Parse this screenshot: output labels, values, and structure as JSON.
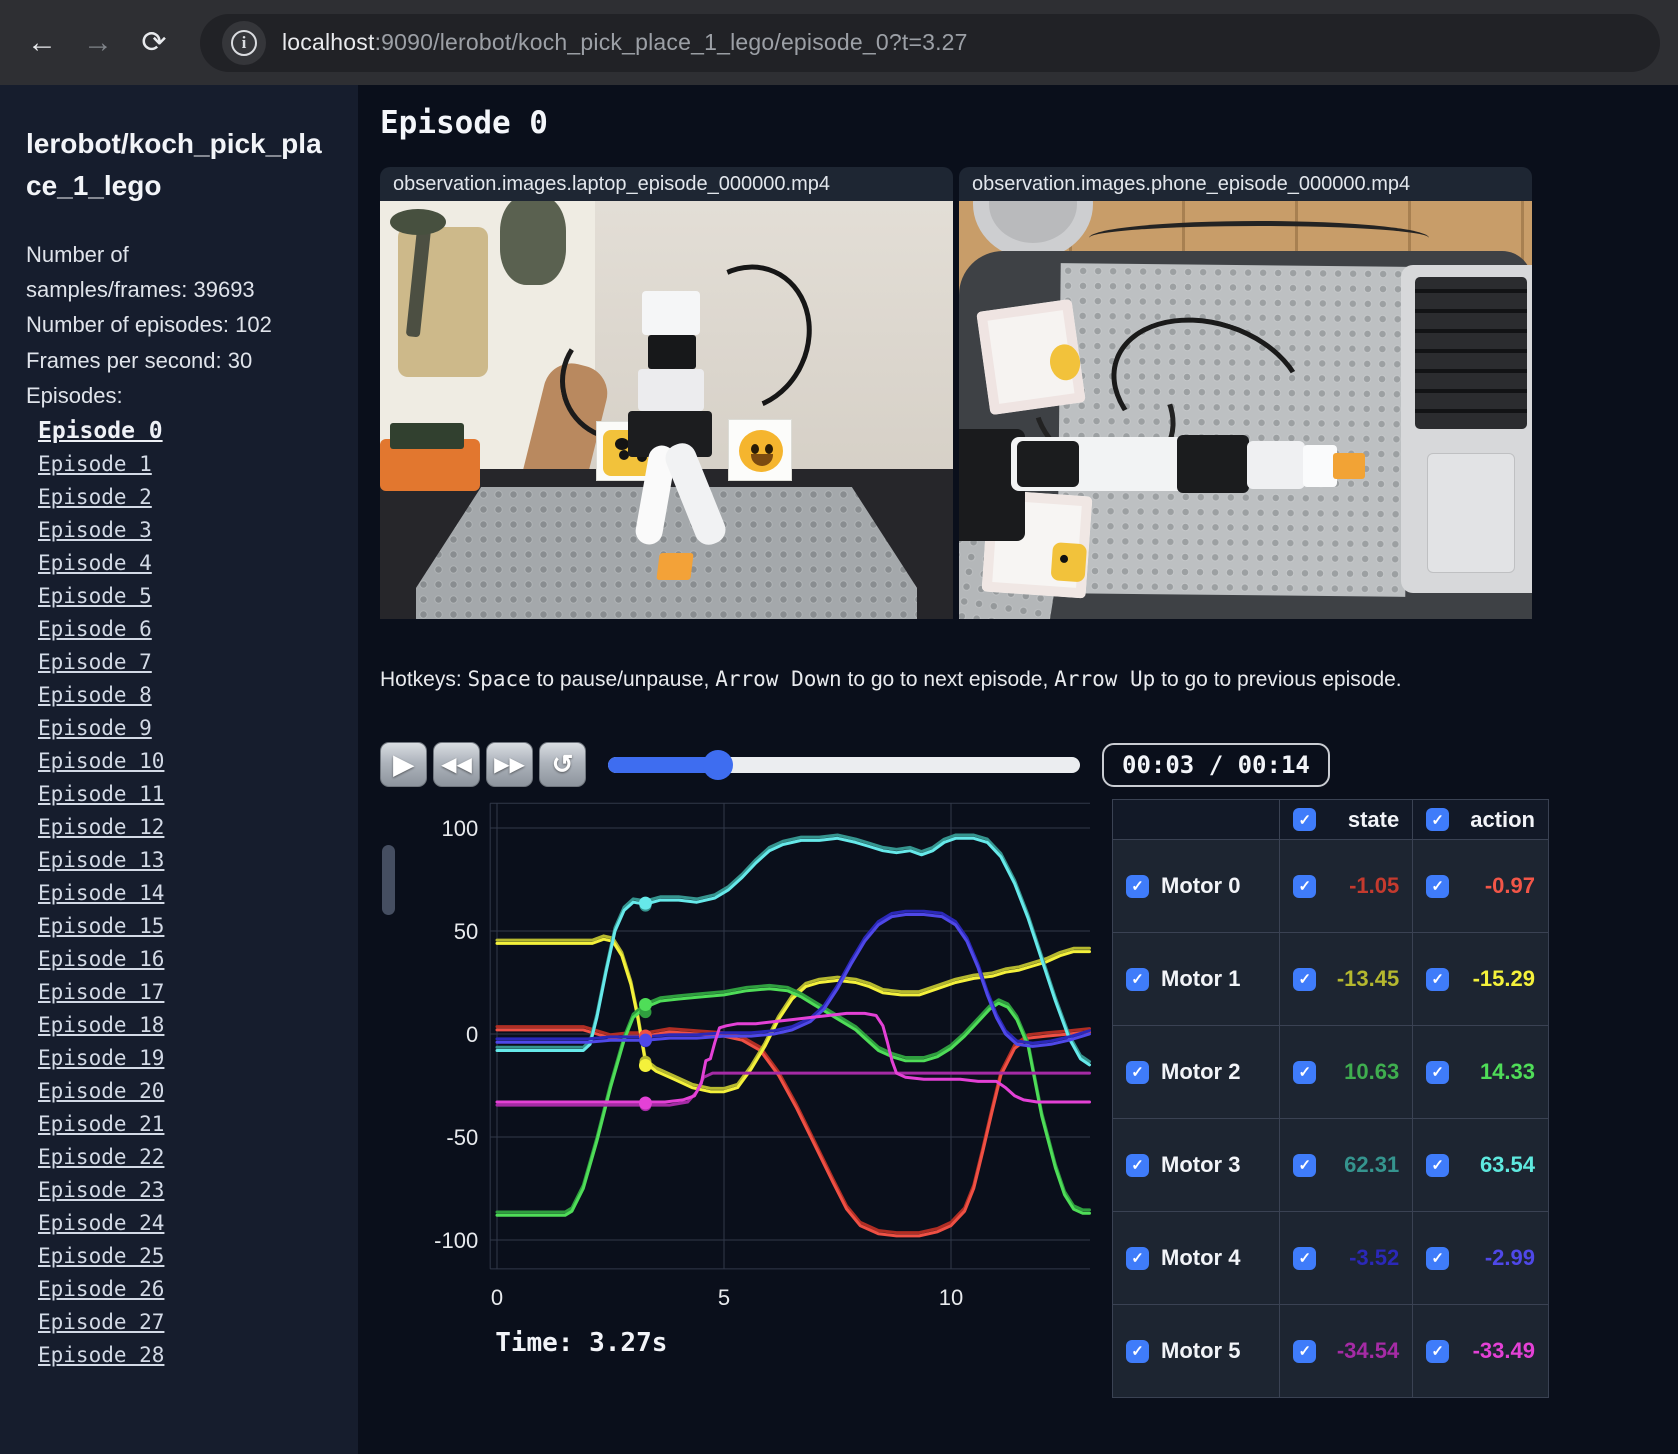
{
  "browser": {
    "url_host": "localhost",
    "url_rest": ":9090/lerobot/koch_pick_place_1_lego/episode_0?t=3.27"
  },
  "icons": {
    "back": "←",
    "forward": "→",
    "reload": "⟳",
    "info": "i",
    "play": "▶",
    "rewind": "◀◀",
    "fast_forward": "▶▶",
    "loop": "↺",
    "check": "✓"
  },
  "sidebar": {
    "title": "lerobot/koch_pick_place_1_lego",
    "stat_lines": [
      "Number of",
      "samples/frames: 39693",
      "Number of episodes: 102",
      "Frames per second: 30",
      "Episodes:"
    ],
    "current_episode": "Episode 0",
    "episodes": [
      "Episode 0",
      "Episode 1",
      "Episode 2",
      "Episode 3",
      "Episode 4",
      "Episode 5",
      "Episode 6",
      "Episode 7",
      "Episode 8",
      "Episode 9",
      "Episode 10",
      "Episode 11",
      "Episode 12",
      "Episode 13",
      "Episode 14",
      "Episode 15",
      "Episode 16",
      "Episode 17",
      "Episode 18",
      "Episode 19",
      "Episode 20",
      "Episode 21",
      "Episode 22",
      "Episode 23",
      "Episode 24",
      "Episode 25",
      "Episode 26",
      "Episode 27",
      "Episode 28"
    ]
  },
  "main": {
    "title": "Episode 0",
    "videos": [
      {
        "label": "observation.images.laptop_episode_000000.mp4"
      },
      {
        "label": "observation.images.phone_episode_000000.mp4"
      }
    ],
    "hotkeys": {
      "intro": "Hotkeys: ",
      "key_space": "Space",
      "t1": " to pause/unpause, ",
      "key_down": "Arrow Down",
      "t2": " to go to next episode, ",
      "key_up": "Arrow Up",
      "t3": " to go to previous episode."
    },
    "time_display": "00:03 / 00:14",
    "progress_pct": 23.4,
    "accent_color": "#3e6df0"
  },
  "chart_data": {
    "type": "line",
    "xticks": [
      0,
      5,
      10
    ],
    "yticks": [
      100,
      50,
      0,
      -50,
      -100
    ],
    "xlim": [
      -0.15,
      13.05
    ],
    "ylim": [
      -114,
      112
    ],
    "grid": true,
    "legend_position": "none",
    "marker_t": 3.27,
    "time_label": "Time: 3.27s",
    "grid_color": "#313849",
    "text_color": "#e8eaed",
    "series": [
      {
        "name": "Motor 0",
        "state_color": "#b02e24",
        "action_color": "#ef5044",
        "state_value": -1.05,
        "action_value": -0.97,
        "points": [
          [
            0,
            2
          ],
          [
            1.9,
            2
          ],
          [
            2.2,
            0
          ],
          [
            2.5,
            -2
          ],
          [
            2.9,
            -1
          ],
          [
            3.27,
            -1
          ],
          [
            3.8,
            1
          ],
          [
            4.4,
            0
          ],
          [
            5,
            -1
          ],
          [
            5.4,
            -3
          ],
          [
            5.8,
            -8
          ],
          [
            6.2,
            -20
          ],
          [
            6.6,
            -36
          ],
          [
            7,
            -54
          ],
          [
            7.4,
            -72
          ],
          [
            7.7,
            -85
          ],
          [
            8,
            -93
          ],
          [
            8.4,
            -97
          ],
          [
            8.8,
            -98
          ],
          [
            9.3,
            -98
          ],
          [
            9.7,
            -96
          ],
          [
            10,
            -93
          ],
          [
            10.3,
            -86
          ],
          [
            10.5,
            -75
          ],
          [
            10.7,
            -57
          ],
          [
            10.9,
            -38
          ],
          [
            11.1,
            -20
          ],
          [
            11.4,
            -7
          ],
          [
            11.7,
            -2
          ],
          [
            12.1,
            -1
          ],
          [
            12.6,
            0
          ],
          [
            13.05,
            1
          ]
        ]
      },
      {
        "name": "Motor 1",
        "state_color": "#b5b82f",
        "action_color": "#f4f13b",
        "state_value": -13.45,
        "action_value": -15.29,
        "points": [
          [
            0,
            44
          ],
          [
            2.1,
            44
          ],
          [
            2.35,
            46
          ],
          [
            2.55,
            45
          ],
          [
            2.75,
            38
          ],
          [
            2.95,
            24
          ],
          [
            3.1,
            8
          ],
          [
            3.27,
            -14
          ],
          [
            3.5,
            -18
          ],
          [
            3.9,
            -22
          ],
          [
            4.3,
            -26
          ],
          [
            4.7,
            -28
          ],
          [
            5,
            -28
          ],
          [
            5.3,
            -26
          ],
          [
            5.6,
            -17
          ],
          [
            5.9,
            -6
          ],
          [
            6.2,
            7
          ],
          [
            6.5,
            17
          ],
          [
            6.8,
            23
          ],
          [
            7.1,
            25
          ],
          [
            7.5,
            26
          ],
          [
            7.9,
            25
          ],
          [
            8.2,
            23
          ],
          [
            8.5,
            20
          ],
          [
            8.9,
            19
          ],
          [
            9.3,
            19
          ],
          [
            9.7,
            22
          ],
          [
            10.1,
            25
          ],
          [
            10.5,
            27
          ],
          [
            10.9,
            28
          ],
          [
            11.2,
            30
          ],
          [
            11.5,
            31
          ],
          [
            11.8,
            33
          ],
          [
            12.1,
            35
          ],
          [
            12.4,
            38
          ],
          [
            12.7,
            40
          ],
          [
            13.05,
            40
          ]
        ]
      },
      {
        "name": "Motor 2",
        "state_color": "#2f9e3f",
        "action_color": "#4fdd58",
        "state_value": 10.63,
        "action_value": 14.33,
        "points": [
          [
            0,
            -88
          ],
          [
            1.5,
            -88
          ],
          [
            1.65,
            -86
          ],
          [
            1.9,
            -75
          ],
          [
            2.2,
            -52
          ],
          [
            2.5,
            -26
          ],
          [
            2.8,
            -3
          ],
          [
            3,
            8
          ],
          [
            3.27,
            13
          ],
          [
            3.6,
            16
          ],
          [
            4,
            17
          ],
          [
            4.5,
            18
          ],
          [
            5,
            19
          ],
          [
            5.5,
            21
          ],
          [
            6,
            22
          ],
          [
            6.4,
            21
          ],
          [
            6.7,
            18
          ],
          [
            7,
            14
          ],
          [
            7.3,
            10
          ],
          [
            7.6,
            6
          ],
          [
            7.9,
            2
          ],
          [
            8.1,
            -2
          ],
          [
            8.4,
            -8
          ],
          [
            8.7,
            -11
          ],
          [
            9,
            -13
          ],
          [
            9.4,
            -13
          ],
          [
            9.7,
            -11
          ],
          [
            10,
            -7
          ],
          [
            10.3,
            -1
          ],
          [
            10.6,
            6
          ],
          [
            10.85,
            12
          ],
          [
            11.05,
            15
          ],
          [
            11.25,
            13
          ],
          [
            11.45,
            7
          ],
          [
            11.7,
            -6
          ],
          [
            12,
            -40
          ],
          [
            12.3,
            -65
          ],
          [
            12.5,
            -78
          ],
          [
            12.7,
            -85
          ],
          [
            12.9,
            -87
          ],
          [
            13.05,
            -87
          ]
        ]
      },
      {
        "name": "Motor 3",
        "state_color": "#35948e",
        "action_color": "#66e9ea",
        "state_value": 62.31,
        "action_value": 63.54,
        "points": [
          [
            0,
            -8
          ],
          [
            1.9,
            -8
          ],
          [
            2.05,
            -5
          ],
          [
            2.2,
            8
          ],
          [
            2.4,
            30
          ],
          [
            2.6,
            50
          ],
          [
            2.8,
            60
          ],
          [
            3,
            64
          ],
          [
            3.27,
            63
          ],
          [
            3.6,
            65
          ],
          [
            4,
            65
          ],
          [
            4.4,
            64
          ],
          [
            4.8,
            66
          ],
          [
            5.1,
            70
          ],
          [
            5.4,
            76
          ],
          [
            5.7,
            83
          ],
          [
            6,
            89
          ],
          [
            6.3,
            92
          ],
          [
            6.7,
            94
          ],
          [
            7.1,
            94
          ],
          [
            7.5,
            95
          ],
          [
            7.9,
            93
          ],
          [
            8.2,
            91
          ],
          [
            8.5,
            89
          ],
          [
            8.8,
            88
          ],
          [
            9.1,
            89
          ],
          [
            9.35,
            87
          ],
          [
            9.6,
            89
          ],
          [
            9.85,
            93
          ],
          [
            10.1,
            95
          ],
          [
            10.5,
            95
          ],
          [
            10.8,
            93
          ],
          [
            11.1,
            86
          ],
          [
            11.4,
            73
          ],
          [
            11.7,
            56
          ],
          [
            12,
            36
          ],
          [
            12.3,
            16
          ],
          [
            12.6,
            -2
          ],
          [
            12.85,
            -12
          ],
          [
            13.05,
            -15
          ]
        ]
      },
      {
        "name": "Motor 4",
        "state_color": "#2b28b8",
        "action_color": "#4f48e8",
        "state_value": -3.52,
        "action_value": -2.99,
        "points": [
          [
            0,
            -4
          ],
          [
            2,
            -4
          ],
          [
            2.5,
            -3
          ],
          [
            3,
            -3
          ],
          [
            3.27,
            -3
          ],
          [
            3.8,
            -2
          ],
          [
            4.4,
            -2
          ],
          [
            5,
            -1
          ],
          [
            5.6,
            -1
          ],
          [
            6.1,
            0
          ],
          [
            6.5,
            2
          ],
          [
            6.9,
            6
          ],
          [
            7.2,
            12
          ],
          [
            7.5,
            22
          ],
          [
            7.8,
            34
          ],
          [
            8.1,
            45
          ],
          [
            8.4,
            53
          ],
          [
            8.7,
            57
          ],
          [
            9,
            58
          ],
          [
            9.4,
            58
          ],
          [
            9.8,
            57
          ],
          [
            10.1,
            53
          ],
          [
            10.35,
            45
          ],
          [
            10.6,
            32
          ],
          [
            10.8,
            19
          ],
          [
            11,
            8
          ],
          [
            11.2,
            0
          ],
          [
            11.45,
            -5
          ],
          [
            11.8,
            -6
          ],
          [
            12.2,
            -5
          ],
          [
            12.6,
            -3
          ],
          [
            12.9,
            -1
          ],
          [
            13.05,
            0
          ]
        ]
      },
      {
        "name": "Motor 5",
        "state_color": "#a52ba5",
        "action_color": "#e441d6",
        "state_value": -34.54,
        "action_value": -33.49,
        "points": [
          [
            0,
            -33
          ],
          [
            3.27,
            -33
          ],
          [
            3.7,
            -33
          ],
          [
            4.1,
            -32
          ],
          [
            4.35,
            -30
          ],
          [
            4.5,
            -24
          ],
          [
            4.6,
            -13
          ],
          [
            4.7,
            -12
          ],
          [
            4.8,
            -4
          ],
          [
            4.9,
            3
          ],
          [
            5.05,
            4
          ],
          [
            5.3,
            5
          ],
          [
            5.7,
            5
          ],
          [
            6.1,
            6
          ],
          [
            6.5,
            7
          ],
          [
            6.9,
            8
          ],
          [
            7.3,
            9
          ],
          [
            7.7,
            10
          ],
          [
            8.1,
            10
          ],
          [
            8.35,
            9
          ],
          [
            8.5,
            4
          ],
          [
            8.6,
            -4
          ],
          [
            8.7,
            -13
          ],
          [
            8.8,
            -19
          ],
          [
            9,
            -21
          ],
          [
            9.4,
            -22
          ],
          [
            9.8,
            -22
          ],
          [
            10.2,
            -22
          ],
          [
            10.6,
            -23
          ],
          [
            11,
            -23
          ],
          [
            11.2,
            -26
          ],
          [
            11.4,
            -30
          ],
          [
            11.6,
            -32
          ],
          [
            11.9,
            -33
          ],
          [
            12.5,
            -33
          ],
          [
            13.05,
            -33
          ]
        ],
        "state_points": [
          [
            0,
            -34.5
          ],
          [
            3.8,
            -34.5
          ],
          [
            4.2,
            -33
          ],
          [
            4.4,
            -28
          ],
          [
            4.55,
            -21
          ],
          [
            4.75,
            -19
          ],
          [
            7,
            -19
          ],
          [
            10,
            -19
          ],
          [
            13.05,
            -19
          ]
        ]
      }
    ]
  },
  "table": {
    "headers": [
      "state",
      "action"
    ],
    "motors": [
      {
        "name": "Motor 0",
        "state": "-1.05",
        "action": "-0.97",
        "state_color": "#c43a2e",
        "action_color": "#f25648"
      },
      {
        "name": "Motor 1",
        "state": "-13.45",
        "action": "-15.29",
        "state_color": "#b5b82f",
        "action_color": "#f4f13b"
      },
      {
        "name": "Motor 2",
        "state": "10.63",
        "action": "14.33",
        "state_color": "#3fae4f",
        "action_color": "#4fdd58"
      },
      {
        "name": "Motor 3",
        "state": "62.31",
        "action": "63.54",
        "state_color": "#35948e",
        "action_color": "#5fe9df"
      },
      {
        "name": "Motor 4",
        "state": "-3.52",
        "action": "-2.99",
        "state_color": "#2b28b8",
        "action_color": "#4f48e8"
      },
      {
        "name": "Motor 5",
        "state": "-34.54",
        "action": "-33.49",
        "state_color": "#a52ba5",
        "action_color": "#e441d6"
      }
    ]
  }
}
